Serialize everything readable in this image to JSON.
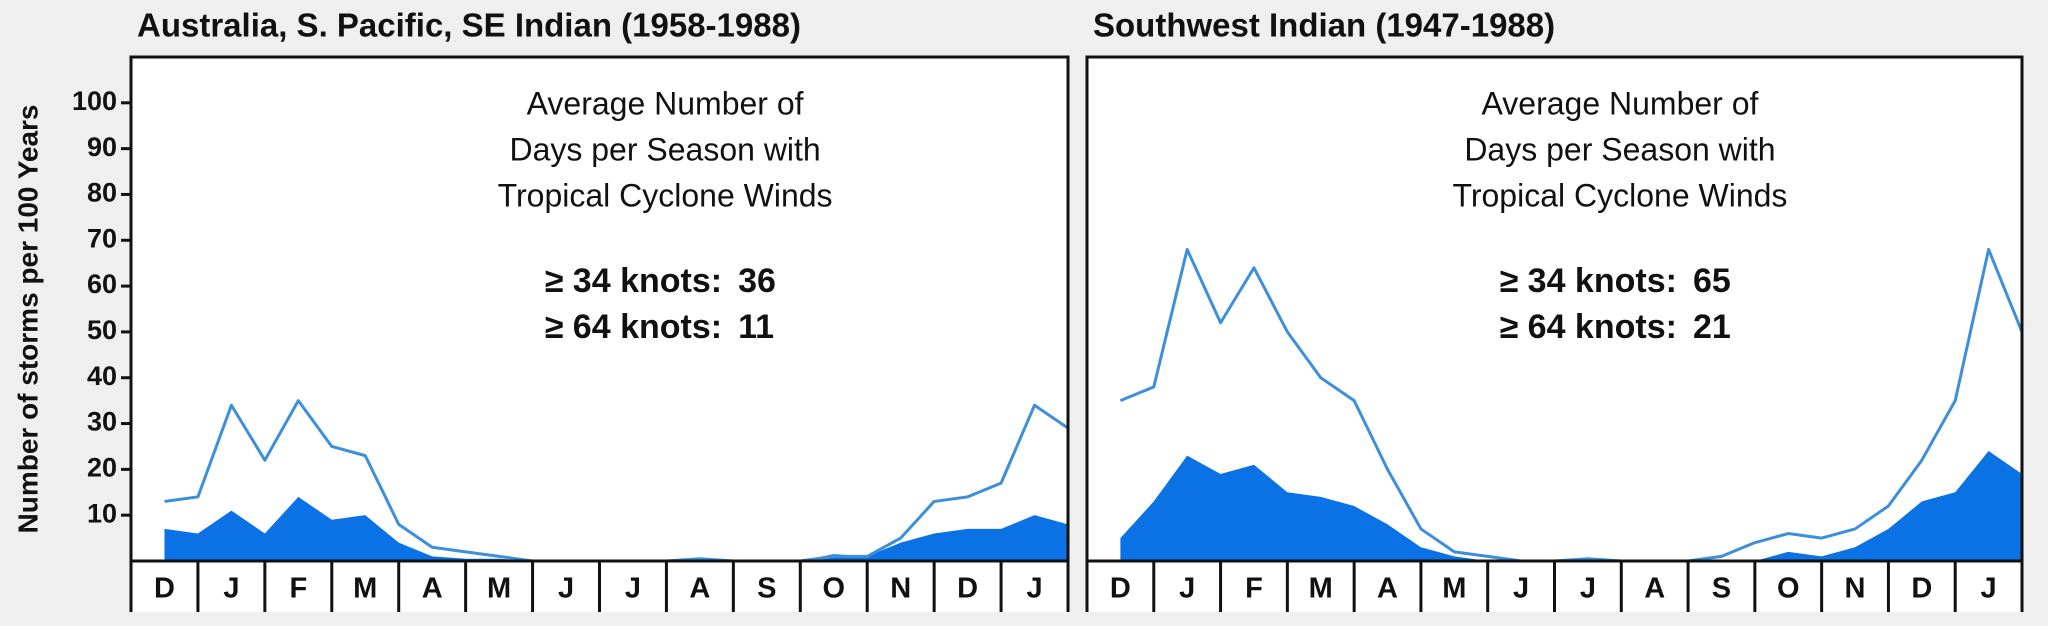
{
  "chart_data": [
    {
      "type": "line-area",
      "title": "Australia, S. Pacific, SE Indian (1958-1988)",
      "ylabel": "Number of storms per 100 Years",
      "annotation": [
        "Average Number of",
        "Days per Season with",
        "Tropical Cyclone Winds"
      ],
      "stats": [
        {
          "label": "≥ 34 knots:",
          "value": 36
        },
        {
          "label": "≥ 64 knots:",
          "value": 11
        }
      ],
      "categories": [
        "D",
        null,
        "J",
        null,
        "F",
        null,
        "M",
        null,
        "A",
        null,
        "M",
        null,
        "J",
        null,
        "J",
        null,
        "A",
        null,
        "S",
        null,
        "O",
        null,
        "N",
        null,
        "D",
        null,
        "J",
        null
      ],
      "series": [
        {
          "style": "area",
          "color": "#0b72e6",
          "values": [
            7,
            6,
            11,
            6,
            14,
            9,
            10,
            4,
            1,
            0.5,
            0.5,
            0,
            0,
            0,
            0,
            0,
            0.5,
            0,
            0,
            0,
            1.5,
            1,
            4,
            6,
            7,
            7,
            10,
            8
          ]
        },
        {
          "style": "line",
          "color": "#3d8fdb",
          "values": [
            13,
            14,
            34,
            22,
            35,
            25,
            23,
            8,
            3,
            2,
            1,
            0,
            0,
            0,
            0,
            0,
            0.5,
            0,
            0,
            0,
            1,
            1,
            5,
            13,
            14,
            17,
            34,
            29
          ]
        }
      ],
      "ylim": [
        0,
        110
      ],
      "yticks": [
        10,
        20,
        30,
        40,
        50,
        60,
        70,
        80,
        90,
        100
      ]
    },
    {
      "type": "line-area",
      "title": "Southwest Indian (1947-1988)",
      "annotation": [
        "Average Number of",
        "Days per Season with",
        "Tropical Cyclone Winds"
      ],
      "stats": [
        {
          "label": "≥ 34 knots:",
          "value": 65
        },
        {
          "label": "≥ 64 knots:",
          "value": 21
        }
      ],
      "categories": [
        "D",
        null,
        "J",
        null,
        "F",
        null,
        "M",
        null,
        "A",
        null,
        "M",
        null,
        "J",
        null,
        "J",
        null,
        "A",
        null,
        "S",
        null,
        "O",
        null,
        "N",
        null,
        "D",
        null,
        "J",
        null
      ],
      "series": [
        {
          "style": "area",
          "color": "#0b72e6",
          "values": [
            5,
            13,
            23,
            19,
            21,
            15,
            14,
            12,
            8,
            3,
            1,
            0,
            0,
            0,
            0,
            0,
            0,
            0,
            0,
            0,
            2,
            1,
            3,
            7,
            13,
            15,
            24,
            19
          ]
        },
        {
          "style": "line",
          "color": "#3d8fdb",
          "values": [
            35,
            38,
            68,
            52,
            64,
            50,
            40,
            35,
            20,
            7,
            2,
            1,
            0,
            0,
            0.5,
            0,
            0,
            0,
            1,
            4,
            6,
            5,
            7,
            12,
            22,
            35,
            68,
            50
          ]
        }
      ],
      "ylim": [
        0,
        110
      ]
    }
  ]
}
